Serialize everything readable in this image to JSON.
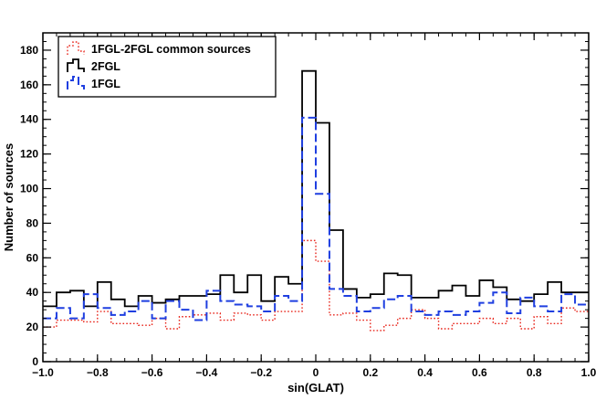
{
  "chart_data": {
    "type": "step-histogram",
    "xlabel": "sin(GLAT)",
    "ylabel": "Number of sources",
    "xlim": [
      -1.0,
      1.0
    ],
    "ylim": [
      0,
      190
    ],
    "x_ticks": [
      -1.0,
      -0.8,
      -0.6,
      -0.4,
      -0.2,
      0,
      0.2,
      0.4,
      0.6,
      0.8,
      1.0
    ],
    "x_tick_labels": [
      "−1.0",
      "−0.8",
      "−0.6",
      "−0.4",
      "−0.2",
      "0",
      "0.2",
      "0.4",
      "0.6",
      "0.8",
      "1.0"
    ],
    "y_ticks": [
      0,
      20,
      40,
      60,
      80,
      100,
      120,
      140,
      160,
      180
    ],
    "y_tick_labels": [
      "0",
      "20",
      "40",
      "60",
      "80",
      "100",
      "120",
      "140",
      "160",
      "180"
    ],
    "bin_edges": [
      -1.0,
      -0.95,
      -0.9,
      -0.85,
      -0.8,
      -0.75,
      -0.7,
      -0.65,
      -0.6,
      -0.55,
      -0.5,
      -0.45,
      -0.4,
      -0.35,
      -0.3,
      -0.25,
      -0.2,
      -0.15,
      -0.1,
      -0.05,
      0.0,
      0.05,
      0.1,
      0.15,
      0.2,
      0.25,
      0.3,
      0.35,
      0.4,
      0.45,
      0.5,
      0.55,
      0.6,
      0.65,
      0.7,
      0.75,
      0.8,
      0.85,
      0.9,
      0.95,
      1.0
    ],
    "series": [
      {
        "name": "1FGL-2FGL common sources",
        "color": "#e8261c",
        "style": "dotted",
        "values": [
          20,
          24,
          24,
          23,
          29,
          22,
          22,
          21,
          25,
          19,
          26,
          27,
          28,
          24,
          28,
          27,
          24,
          29,
          29,
          70,
          58,
          27,
          28,
          24,
          18,
          21,
          25,
          30,
          25,
          19,
          22,
          22,
          25,
          22,
          25,
          19,
          26,
          22,
          31,
          29
        ]
      },
      {
        "name": "2FGL",
        "color": "#000000",
        "style": "solid",
        "values": [
          32,
          40,
          41,
          32,
          46,
          36,
          32,
          38,
          34,
          36,
          38,
          38,
          39,
          50,
          40,
          50,
          35,
          49,
          45,
          168,
          138,
          76,
          42,
          37,
          39,
          51,
          50,
          37,
          37,
          41,
          44,
          38,
          47,
          43,
          36,
          35,
          39,
          46,
          40,
          40
        ]
      },
      {
        "name": "1FGL",
        "color": "#1f3fe0",
        "style": "dashed",
        "values": [
          25,
          31,
          25,
          39,
          31,
          27,
          29,
          35,
          25,
          35,
          30,
          24,
          41,
          35,
          33,
          32,
          29,
          38,
          35,
          141,
          97,
          42,
          38,
          29,
          31,
          36,
          38,
          29,
          27,
          29,
          27,
          29,
          34,
          40,
          28,
          37,
          32,
          29,
          39,
          33
        ]
      }
    ],
    "legend": {
      "location": "top-left",
      "entries": [
        "1FGL-2FGL common sources",
        "2FGL",
        "1FGL"
      ]
    },
    "grid": false
  }
}
